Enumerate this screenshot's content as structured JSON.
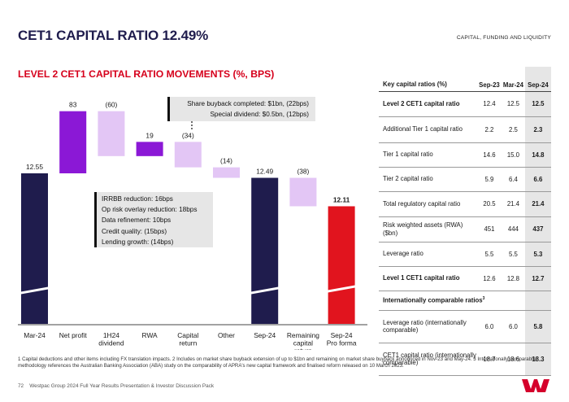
{
  "header": {
    "title": "CET1 CAPITAL RATIO 12.49%",
    "section": "CAPITAL, FUNDING AND LIQUIDITY"
  },
  "chart_title": "LEVEL 2 CET1 CAPITAL RATIO MOVEMENTS (%, BPS)",
  "chart_data": {
    "type": "bar",
    "subtype": "waterfall",
    "title": "LEVEL 2 CET1 CAPITAL RATIO MOVEMENTS (%, BPS)",
    "units": "% (totals) / bps (movements)",
    "categories": [
      "Mar-24",
      "Net profit",
      "1H24 dividend",
      "RWA",
      "Capital return",
      "Other",
      "Sep-24",
      "Remaining capital return",
      "Sep-24 Pro forma"
    ],
    "category_lines": [
      [
        "Mar-24"
      ],
      [
        "Net profit"
      ],
      [
        "1H24",
        "dividend"
      ],
      [
        "RWA"
      ],
      [
        "Capital",
        "return"
      ],
      [
        "Other"
      ],
      [
        "Sep-24"
      ],
      [
        "Remaining",
        "capital",
        "return"
      ],
      [
        "Sep-24",
        "Pro forma"
      ]
    ],
    "category_superscripts": [
      "",
      "",
      "",
      "",
      "",
      "1",
      "",
      "2",
      ""
    ],
    "values": [
      12.55,
      83,
      -60,
      19,
      -34,
      -14,
      12.49,
      -38,
      12.11
    ],
    "labels": [
      "12.55",
      "83",
      "(60)",
      "19",
      "(34)",
      "(14)",
      "12.49",
      "(38)",
      "12.11"
    ],
    "kinds": [
      "total",
      "increase",
      "decrease",
      "increase",
      "decrease",
      "decrease",
      "total",
      "decrease",
      "proforma"
    ],
    "axis_break": true,
    "colors": {
      "total": "#1f1c4d",
      "increase": "#8b18d6",
      "decrease": "#e3c6f5",
      "proforma": "#e1141e"
    },
    "annotations": {
      "capital_return": [
        "Share buyback completed: $1bn, (22bps)",
        "Special dividend: $0.5bn, (12bps)"
      ],
      "rwa": [
        "IRRBB reduction: 16bps",
        "Op risk overlay reduction: 18bps",
        "Data refinement: 10bps",
        "Credit quality: (15bps)",
        "Lending growth: (14bps)"
      ]
    }
  },
  "table": {
    "header": {
      "label": "Key capital ratios (%)",
      "col1": "Sep-23",
      "col2": "Mar-24",
      "col3": "Sep-24"
    },
    "rows": [
      {
        "label": "Level 2 CET1 capital ratio",
        "v1": "12.4",
        "v2": "12.5",
        "v3": "12.5",
        "bold": true
      },
      {
        "label": "Additional Tier 1 capital ratio",
        "v1": "2.2",
        "v2": "2.5",
        "v3": "2.3"
      },
      {
        "label": "Tier 1 capital ratio",
        "v1": "14.6",
        "v2": "15.0",
        "v3": "14.8"
      },
      {
        "label": "Tier 2 capital ratio",
        "v1": "5.9",
        "v2": "6.4",
        "v3": "6.6"
      },
      {
        "label": "Total regulatory capital ratio",
        "v1": "20.5",
        "v2": "21.4",
        "v3": "21.4"
      },
      {
        "label": "Risk weighted assets (RWA) ($bn)",
        "v1": "451",
        "v2": "444",
        "v3": "437"
      },
      {
        "label": "Leverage ratio",
        "v1": "5.5",
        "v2": "5.5",
        "v3": "5.3"
      },
      {
        "label": "Level 1 CET1 capital ratio",
        "v1": "12.6",
        "v2": "12.8",
        "v3": "12.7",
        "bold": true
      }
    ],
    "section_label": "Internationally comparable ratios",
    "section_sup": "3",
    "intl_rows": [
      {
        "label": "Leverage ratio (internationally comparable)",
        "v1": "6.0",
        "v2": "6.0",
        "v3": "5.8"
      },
      {
        "label": "CET1 capital ratio (internationally comparable)",
        "v1": "18.7",
        "v2": "18.6",
        "v3": "18.3"
      }
    ]
  },
  "footnote": "1 Capital deductions and other items including FX translation impacts. 2 Includes on market share buyback extension of up to $1bn and remaining on market share buyback announced in Nov-23 and May-24. 3 Internationally comparable methodology references the Australian Banking Association (ABA) study on the comparability of APRA's new capital framework and finalised reform released on 10 March 2023.",
  "footer": {
    "page": "72",
    "text": "Westpac Group 2024 Full Year Results Presentation & Investor Discussion Pack"
  },
  "logo": {
    "icon": "westpac-w-logo",
    "color": "#d5002b"
  }
}
